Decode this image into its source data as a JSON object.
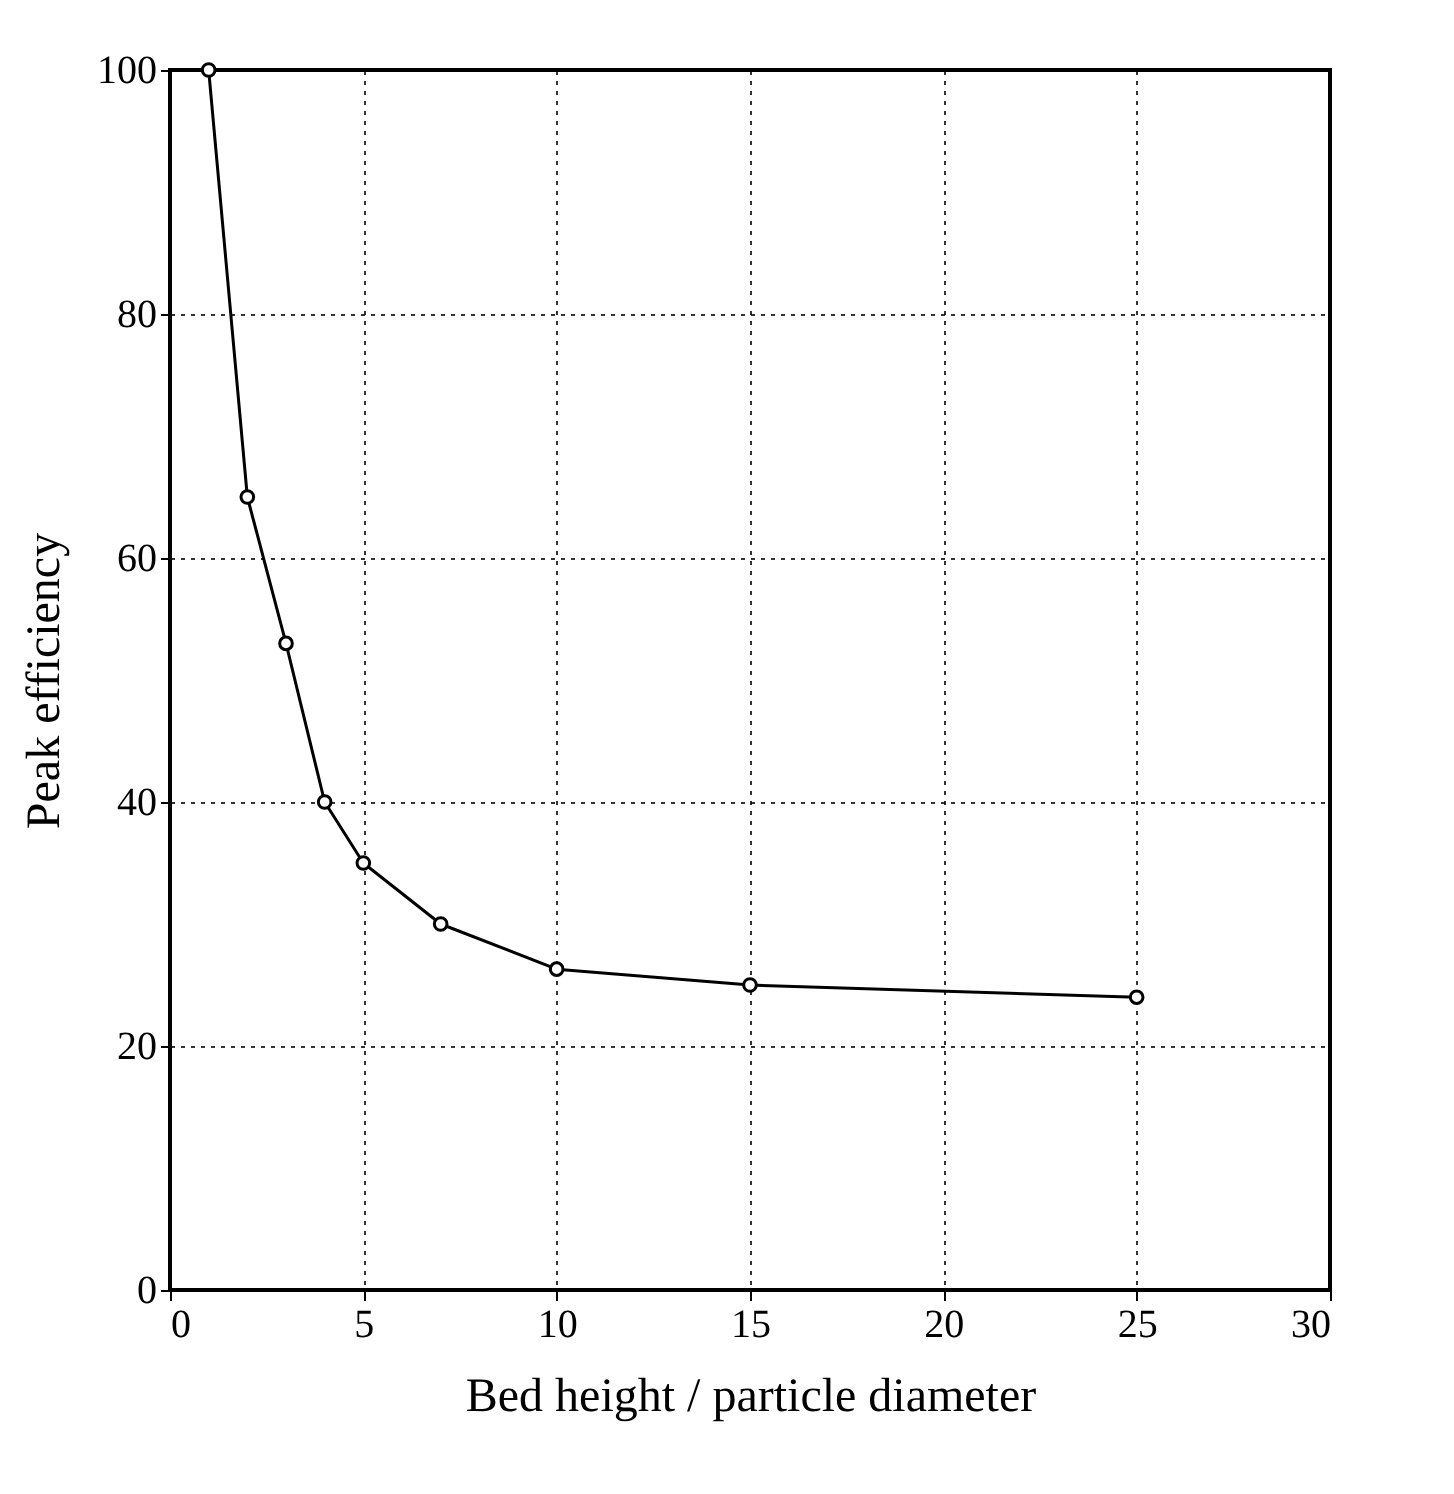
{
  "chart_data": {
    "type": "line",
    "xlabel": "Bed height / particle diameter",
    "ylabel": "Peak efficiency",
    "x": [
      1,
      2,
      3,
      4,
      5,
      7,
      10,
      15,
      25
    ],
    "series": [
      {
        "color": "#000000",
        "values": [
          100,
          65,
          53,
          40,
          35,
          30,
          26.3,
          25,
          24
        ]
      }
    ],
    "xlim": [
      0,
      30
    ],
    "xticks": [
      0,
      5,
      10,
      15,
      20,
      25,
      30
    ],
    "ylim": [
      0,
      100
    ],
    "yticks": [
      0,
      20,
      40,
      60,
      80,
      100
    ],
    "grid": true,
    "marker": "circle",
    "line_style": "solid"
  }
}
